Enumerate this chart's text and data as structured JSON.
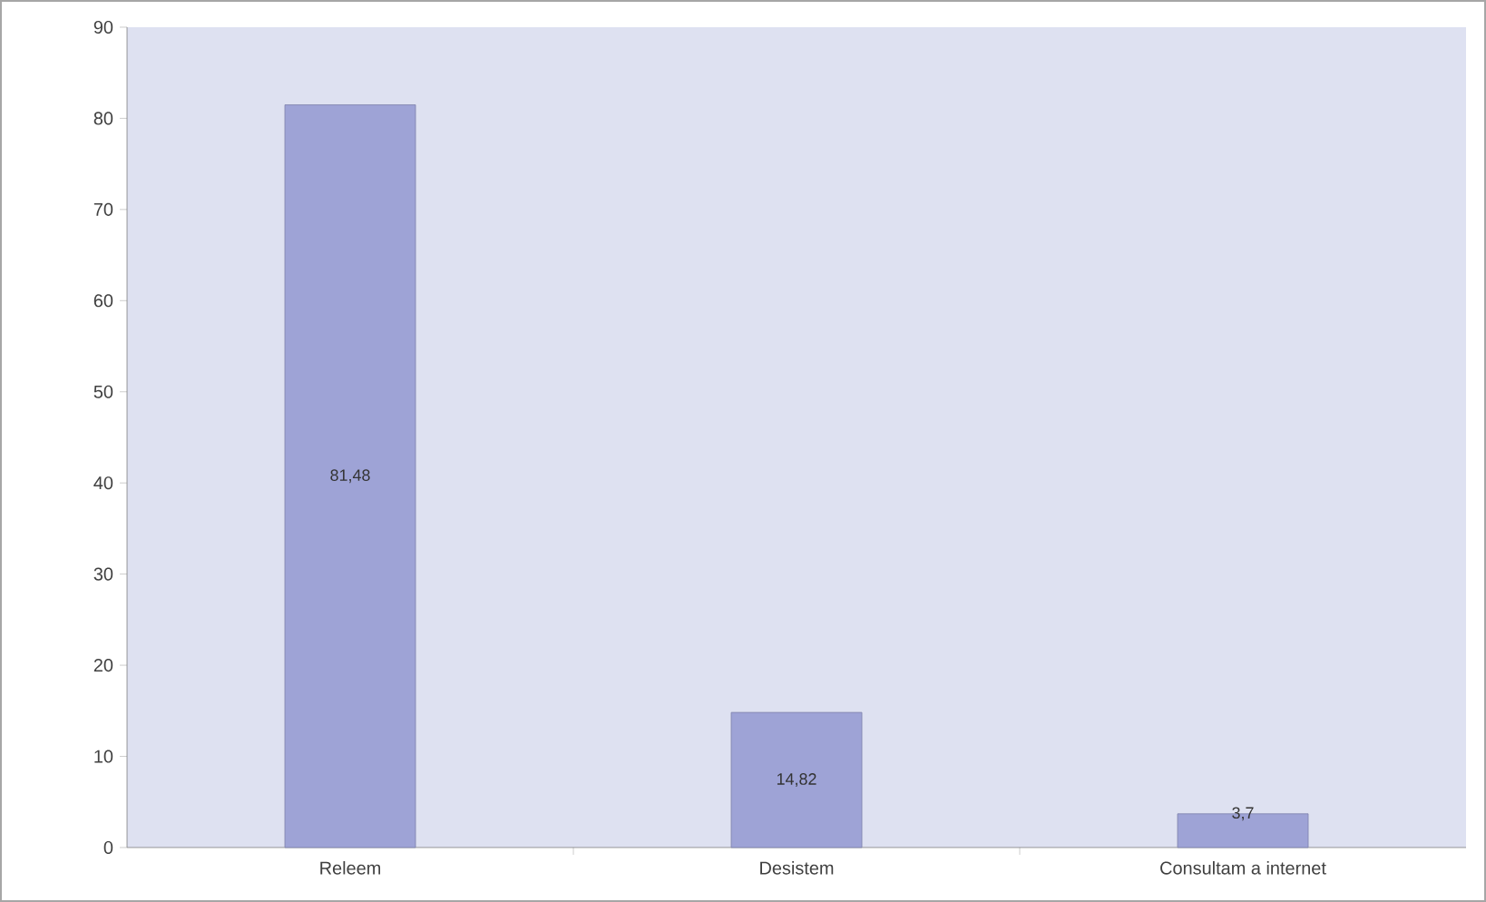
{
  "chart_data": {
    "type": "bar",
    "categories": [
      "Releem",
      "Desistem",
      "Consultam a internet"
    ],
    "values": [
      81.48,
      14.82,
      3.7
    ],
    "value_labels": [
      "81,48",
      "14,82",
      "3,7"
    ],
    "color": "#9ea3d6",
    "ylim": [
      0,
      90
    ],
    "yticks": [
      0,
      10,
      20,
      30,
      40,
      50,
      60,
      70,
      80,
      90
    ],
    "data_labels": false
  }
}
